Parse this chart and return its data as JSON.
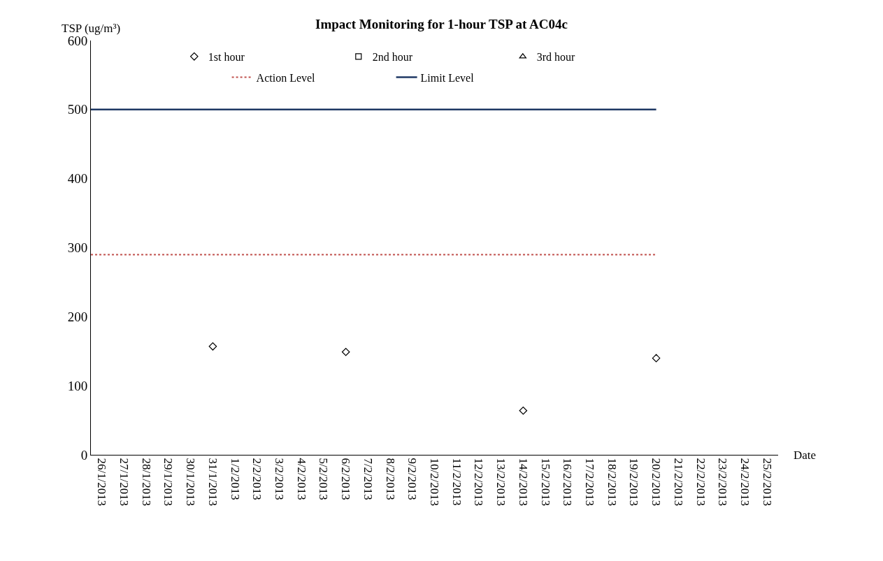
{
  "chart_data": {
    "type": "scatter",
    "title": "Impact Monitoring for 1-hour TSP at AC04c",
    "ylabel": "TSP (ug/m³)",
    "xlabel": "Date",
    "xlim": [
      "2013-01-25T12:00",
      "2013-02-25T12:00"
    ],
    "xticks": [
      {
        "value": "2013-01-26",
        "label": "26/1/2013"
      },
      {
        "value": "2013-01-27",
        "label": "27/1/2013"
      },
      {
        "value": "2013-01-28",
        "label": "28/1/2013"
      },
      {
        "value": "2013-01-29",
        "label": "29/1/2013"
      },
      {
        "value": "2013-01-30",
        "label": "30/1/2013"
      },
      {
        "value": "2013-01-31",
        "label": "31/1/2013"
      },
      {
        "value": "2013-02-01",
        "label": "1/2/2013"
      },
      {
        "value": "2013-02-02",
        "label": "2/2/2013"
      },
      {
        "value": "2013-02-03",
        "label": "3/2/2013"
      },
      {
        "value": "2013-02-04",
        "label": "4/2/2013"
      },
      {
        "value": "2013-02-05",
        "label": "5/2/2013"
      },
      {
        "value": "2013-02-06",
        "label": "6/2/2013"
      },
      {
        "value": "2013-02-07",
        "label": "7/2/2013"
      },
      {
        "value": "2013-02-08",
        "label": "8/2/2013"
      },
      {
        "value": "2013-02-09",
        "label": "9/2/2013"
      },
      {
        "value": "2013-02-10",
        "label": "10/2/2013"
      },
      {
        "value": "2013-02-11",
        "label": "11/2/2013"
      },
      {
        "value": "2013-02-12",
        "label": "12/2/2013"
      },
      {
        "value": "2013-02-13",
        "label": "13/2/2013"
      },
      {
        "value": "2013-02-14",
        "label": "14/2/2013"
      },
      {
        "value": "2013-02-15",
        "label": "15/2/2013"
      },
      {
        "value": "2013-02-16",
        "label": "16/2/2013"
      },
      {
        "value": "2013-02-17",
        "label": "17/2/2013"
      },
      {
        "value": "2013-02-18",
        "label": "18/2/2013"
      },
      {
        "value": "2013-02-19",
        "label": "19/2/2013"
      },
      {
        "value": "2013-02-20",
        "label": "20/2/2013"
      },
      {
        "value": "2013-02-21",
        "label": "21/2/2013"
      },
      {
        "value": "2013-02-22",
        "label": "22/2/2013"
      },
      {
        "value": "2013-02-23",
        "label": "23/2/2013"
      },
      {
        "value": "2013-02-24",
        "label": "24/2/2013"
      },
      {
        "value": "2013-02-25",
        "label": "25/2/2013"
      }
    ],
    "ylim": [
      0,
      600
    ],
    "yticks": [
      0,
      100,
      200,
      300,
      400,
      500,
      600
    ],
    "legend": "top",
    "series": [
      {
        "name": "1st hour",
        "marker": "diamond",
        "color": "#000000",
        "x": [
          "2013-01-31",
          "2013-02-06",
          "2013-02-14",
          "2013-02-20"
        ],
        "values": [
          157,
          149,
          64,
          140
        ]
      },
      {
        "name": "2nd hour",
        "marker": "square",
        "color": "#000000"
      },
      {
        "name": "3rd hour",
        "marker": "triangle",
        "color": "#000000"
      },
      {
        "name": "Action Level",
        "type": "line",
        "line_style": "dotted",
        "color": "#c0504d",
        "x": [
          "2013-01-25T12:00",
          "2013-02-20"
        ],
        "values": [
          290,
          290
        ]
      },
      {
        "name": "Limit Level",
        "type": "line",
        "line_style": "solid",
        "color": "#1f3864",
        "x": [
          "2013-01-25T12:00",
          "2013-02-20"
        ],
        "values": [
          500,
          500
        ]
      }
    ]
  }
}
